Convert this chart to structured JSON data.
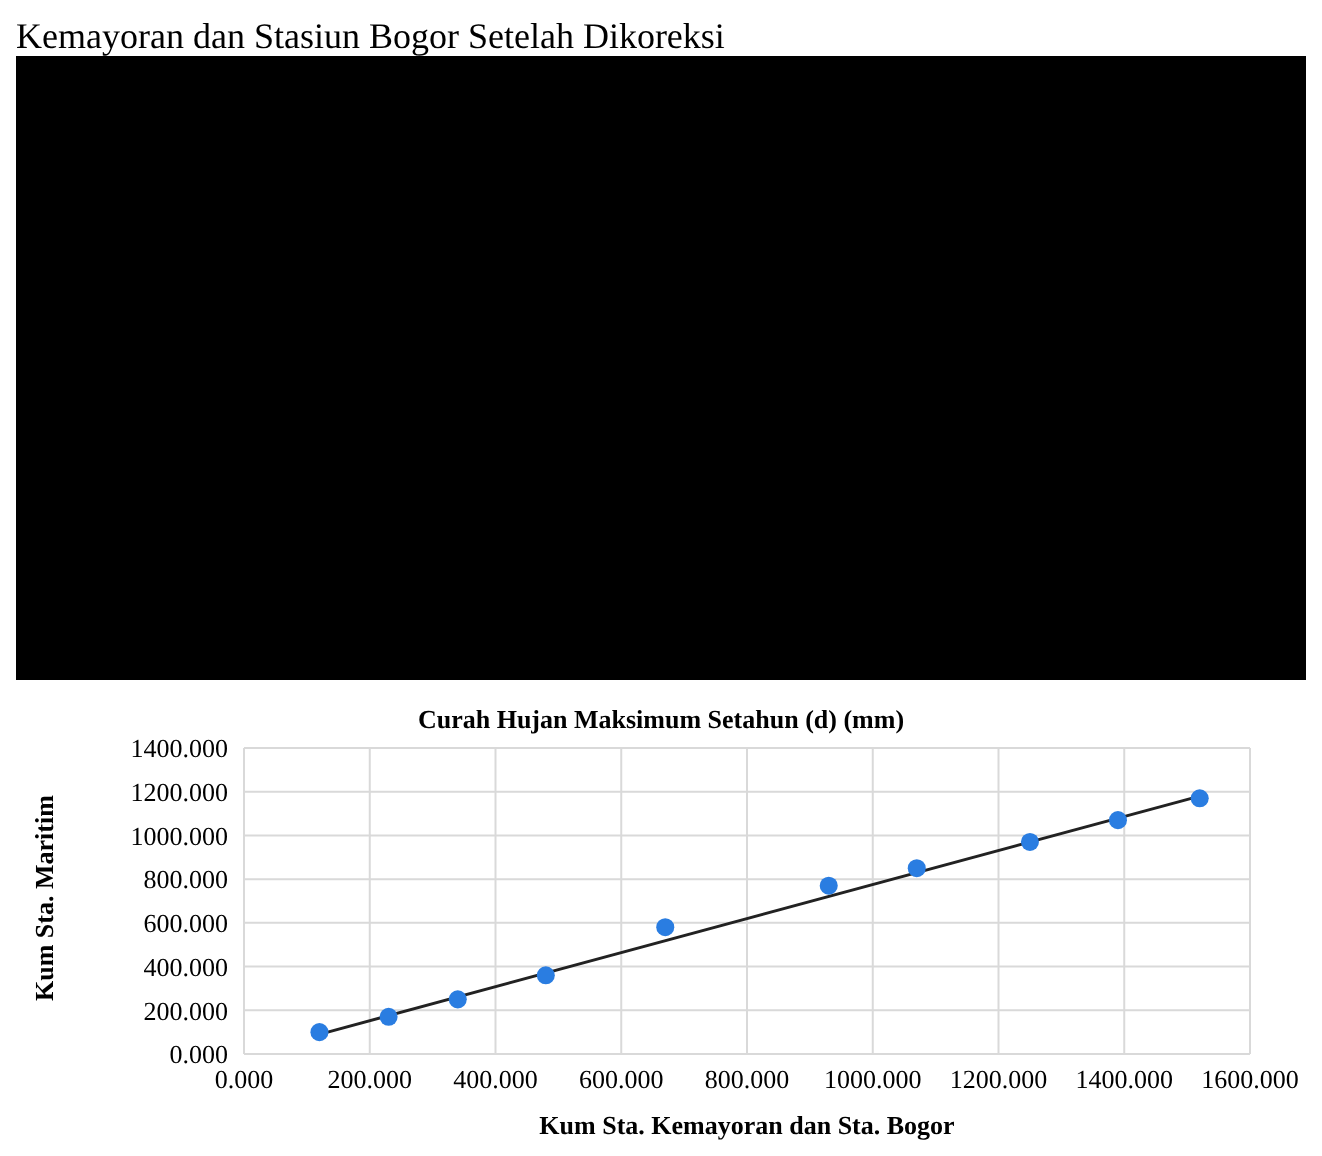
{
  "chart_data": {
    "type": "scatter",
    "title": "Curah Hujan Maksimum Setahun (d) (mm)",
    "xlabel": "Kum Sta. Kemayoran dan Sta. Bogor",
    "ylabel": "Kum Sta. Maritim",
    "annotations": [
      "Kemayoran dan Stasiun Bogor Setelah Dikoreksi"
    ],
    "series": [
      {
        "color": "#2a7de1",
        "marker": "circle",
        "x": [
          120,
          230,
          340,
          480,
          670,
          930,
          1070,
          1250,
          1390,
          1520
        ],
        "values": [
          100,
          170,
          250,
          360,
          580,
          770,
          850,
          970,
          1070,
          1170
        ]
      },
      {
        "type": "line",
        "color": "#222222",
        "marker": "none",
        "x": [
          120,
          1520
        ],
        "values": [
          90,
          1180
        ]
      }
    ],
    "xlim": [
      0,
      1600
    ],
    "ylim": [
      0,
      1400
    ],
    "xticks": [
      {
        "value": 0,
        "label": "0.000"
      },
      {
        "value": 200,
        "label": "200.000"
      },
      {
        "value": 400,
        "label": "400.000"
      },
      {
        "value": 600,
        "label": "600.000"
      },
      {
        "value": 800,
        "label": "800.000"
      },
      {
        "value": 1000,
        "label": "1000.000"
      },
      {
        "value": 1200,
        "label": "1200.000"
      },
      {
        "value": 1400,
        "label": "1400.000"
      },
      {
        "value": 1600,
        "label": "1600.000"
      }
    ],
    "yticks": [
      {
        "value": 0,
        "label": "0.000"
      },
      {
        "value": 200,
        "label": "200.000"
      },
      {
        "value": 400,
        "label": "400.000"
      },
      {
        "value": 600,
        "label": "600.000"
      },
      {
        "value": 800,
        "label": "800.000"
      },
      {
        "value": 1000,
        "label": "1000.000"
      },
      {
        "value": 1200,
        "label": "1200.000"
      },
      {
        "value": 1400,
        "label": "1400.000"
      }
    ],
    "grid": true
  }
}
